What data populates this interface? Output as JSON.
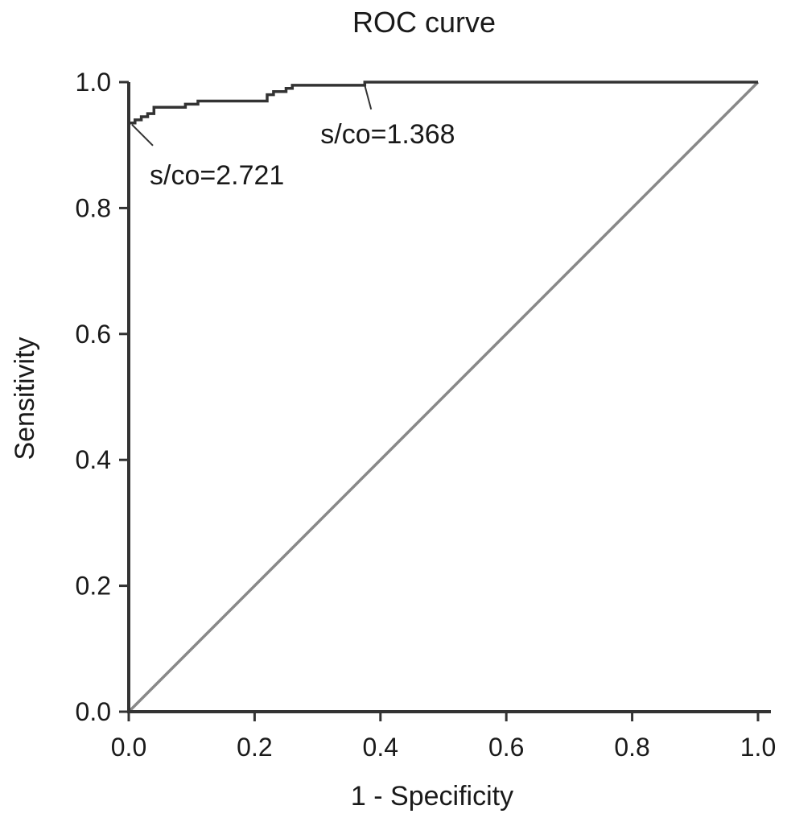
{
  "chart_data": {
    "type": "line",
    "title": "ROC curve",
    "xlabel": "1 - Specificity",
    "ylabel": "Sensitivity",
    "xlim": [
      0.0,
      1.0
    ],
    "ylim": [
      0.0,
      1.0
    ],
    "xticks": [
      "0.0",
      "0.2",
      "0.4",
      "0.6",
      "0.8",
      "1.0"
    ],
    "yticks": [
      "0.0",
      "0.2",
      "0.4",
      "0.6",
      "0.8",
      "1.0"
    ],
    "grid": false,
    "series": [
      {
        "color": "#333333",
        "points": [
          [
            0.0,
            0.0
          ],
          [
            0.0,
            0.935
          ],
          [
            0.01,
            0.935
          ],
          [
            0.01,
            0.94
          ],
          [
            0.02,
            0.94
          ],
          [
            0.02,
            0.945
          ],
          [
            0.03,
            0.945
          ],
          [
            0.03,
            0.95
          ],
          [
            0.04,
            0.95
          ],
          [
            0.04,
            0.96
          ],
          [
            0.09,
            0.96
          ],
          [
            0.09,
            0.965
          ],
          [
            0.11,
            0.965
          ],
          [
            0.11,
            0.97
          ],
          [
            0.22,
            0.97
          ],
          [
            0.22,
            0.98
          ],
          [
            0.23,
            0.98
          ],
          [
            0.23,
            0.985
          ],
          [
            0.25,
            0.985
          ],
          [
            0.25,
            0.99
          ],
          [
            0.26,
            0.99
          ],
          [
            0.26,
            0.995
          ],
          [
            0.375,
            0.995
          ],
          [
            0.375,
            1.0
          ],
          [
            1.0,
            1.0
          ]
        ]
      },
      {
        "color": "#888888",
        "points": [
          [
            0.0,
            0.0
          ],
          [
            1.0,
            1.0
          ]
        ]
      }
    ],
    "annotations": [
      {
        "text": "s/co=2.721",
        "x": 0.0,
        "y": 0.935
      },
      {
        "text": "s/co=1.368",
        "x": 0.375,
        "y": 0.995
      }
    ]
  }
}
